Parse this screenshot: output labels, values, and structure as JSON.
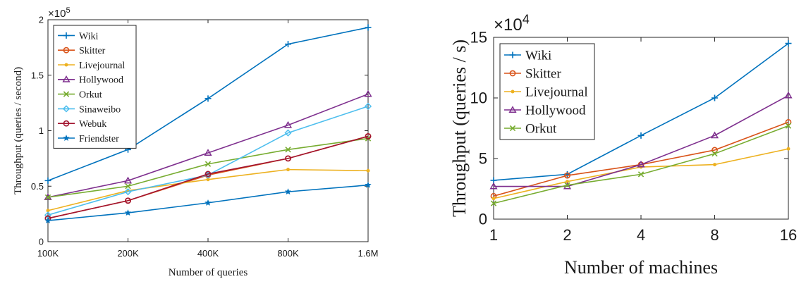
{
  "chart_data": [
    {
      "type": "line",
      "title": "",
      "xlabel": "Number of queries",
      "ylabel": "Throughput (queries / second)",
      "exponent_label": "×10",
      "exponent_power": "5",
      "categories": [
        "100K",
        "200K",
        "400K",
        "800K",
        "1.6M"
      ],
      "ylim": [
        0,
        2
      ],
      "yticks": [
        "0",
        "0.5",
        "1",
        "1.5",
        "2"
      ],
      "ytick_values": [
        0,
        0.5,
        1,
        1.5,
        2
      ],
      "grid": false,
      "legend_position": "top-left",
      "series": [
        {
          "name": "Wiki",
          "color": "#0072BD",
          "marker": "plus",
          "values": [
            0.55,
            0.83,
            1.29,
            1.78,
            1.93
          ]
        },
        {
          "name": "Skitter",
          "color": "#D95319",
          "marker": "circle",
          "values": [
            0.21,
            0.37,
            0.6,
            0.75,
            0.95
          ]
        },
        {
          "name": "Livejournal",
          "color": "#EDB120",
          "marker": "dot",
          "values": [
            0.28,
            0.46,
            0.56,
            0.65,
            0.64
          ]
        },
        {
          "name": "Hollywood",
          "color": "#7E2F8E",
          "marker": "triangle",
          "values": [
            0.4,
            0.55,
            0.8,
            1.05,
            1.33
          ]
        },
        {
          "name": "Orkut",
          "color": "#77AC30",
          "marker": "x",
          "values": [
            0.4,
            0.5,
            0.7,
            0.83,
            0.93
          ]
        },
        {
          "name": "Sinaweibo",
          "color": "#4DBEEE",
          "marker": "diamond",
          "values": [
            0.24,
            0.45,
            0.6,
            0.98,
            1.22
          ]
        },
        {
          "name": "Webuk",
          "color": "#A2142F",
          "marker": "circle",
          "values": [
            0.21,
            0.37,
            0.61,
            0.75,
            0.95
          ]
        },
        {
          "name": "Friendster",
          "color": "#0072BD",
          "marker": "star",
          "values": [
            0.19,
            0.26,
            0.35,
            0.45,
            0.51
          ]
        }
      ]
    },
    {
      "type": "line",
      "title": "",
      "xlabel": "Number of machines",
      "ylabel": "Throughput (queries / s)",
      "exponent_label": "×10",
      "exponent_power": "4",
      "categories": [
        "1",
        "2",
        "4",
        "8",
        "16"
      ],
      "ylim": [
        0,
        15
      ],
      "yticks": [
        "0",
        "5",
        "10",
        "15"
      ],
      "ytick_values": [
        0,
        5,
        10,
        15
      ],
      "grid": false,
      "legend_position": "top-left",
      "series": [
        {
          "name": "Wiki",
          "color": "#0072BD",
          "marker": "plus",
          "values": [
            3.2,
            3.7,
            6.9,
            10.0,
            14.5
          ]
        },
        {
          "name": "Skitter",
          "color": "#D95319",
          "marker": "circle",
          "values": [
            1.9,
            3.6,
            4.5,
            5.7,
            8.0
          ]
        },
        {
          "name": "Livejournal",
          "color": "#EDB120",
          "marker": "dot",
          "values": [
            1.7,
            3.1,
            4.3,
            4.5,
            5.8
          ]
        },
        {
          "name": "Hollywood",
          "color": "#7E2F8E",
          "marker": "triangle",
          "values": [
            2.7,
            2.7,
            4.5,
            6.9,
            10.2
          ]
        },
        {
          "name": "Orkut",
          "color": "#77AC30",
          "marker": "x",
          "values": [
            1.3,
            2.8,
            3.7,
            5.4,
            7.7
          ]
        }
      ]
    }
  ]
}
